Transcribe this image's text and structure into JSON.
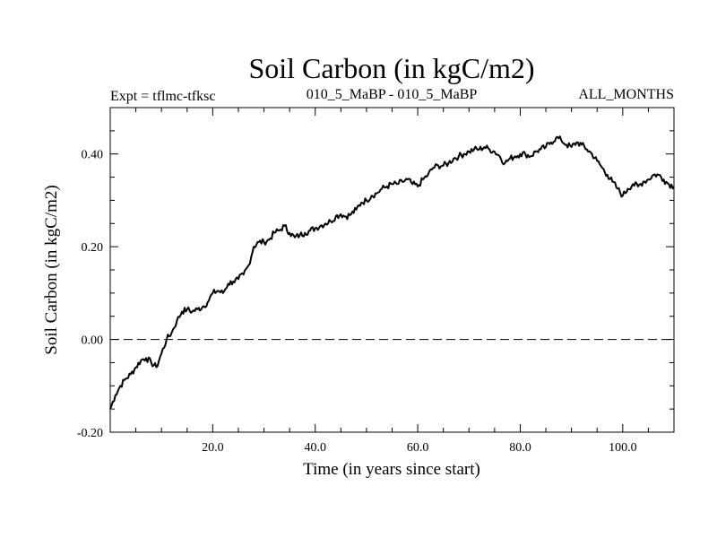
{
  "chart_data": {
    "type": "line",
    "title": "Soil Carbon (in kgC/m2)",
    "subtitle_left": "Expt = tflmc-tfksc",
    "subtitle_center": "010_5_MaBP - 010_5_MaBP",
    "subtitle_right": "ALL_MONTHS",
    "xlabel": "Time (in years since start)",
    "ylabel": "Soil Carbon (in kgC/m2)",
    "xlim": [
      0,
      110
    ],
    "ylim": [
      -0.2,
      0.5
    ],
    "x_ticks": [
      {
        "value": 20,
        "label": "20.0"
      },
      {
        "value": 40,
        "label": "40.0"
      },
      {
        "value": 60,
        "label": "60.0"
      },
      {
        "value": 80,
        "label": "80.0"
      },
      {
        "value": 100,
        "label": "100.0"
      }
    ],
    "y_ticks": [
      {
        "value": -0.2,
        "label": "-0.20"
      },
      {
        "value": 0.0,
        "label": "0.00"
      },
      {
        "value": 0.2,
        "label": "0.20"
      },
      {
        "value": 0.4,
        "label": "0.40"
      }
    ],
    "reference_line": {
      "y": 0.0,
      "style": "dashed"
    },
    "series": [
      {
        "name": "Soil Carbon",
        "x": [
          0,
          1,
          2,
          3,
          4,
          5,
          6,
          7,
          8,
          9,
          10,
          11,
          12,
          13,
          14,
          15,
          16,
          17,
          18,
          19,
          20,
          21,
          22,
          23,
          24,
          25,
          26,
          27,
          28,
          29,
          30,
          31,
          32,
          33,
          34,
          35,
          36,
          37,
          38,
          39,
          40,
          41,
          42,
          43,
          44,
          45,
          46,
          47,
          48,
          49,
          50,
          51,
          52,
          53,
          54,
          55,
          56,
          57,
          58,
          59,
          60,
          61,
          62,
          63,
          64,
          65,
          66,
          67,
          68,
          69,
          70,
          71,
          72,
          73,
          74,
          75,
          76,
          77,
          78,
          79,
          80,
          81,
          82,
          83,
          84,
          85,
          86,
          87,
          88,
          89,
          90,
          91,
          92,
          93,
          94,
          95,
          96,
          97,
          98,
          99,
          100,
          101,
          102,
          103,
          104,
          105,
          106,
          107,
          108,
          109,
          110
        ],
        "y": [
          -0.15,
          -0.12,
          -0.1,
          -0.085,
          -0.075,
          -0.06,
          -0.045,
          -0.04,
          -0.05,
          -0.06,
          -0.03,
          0.0,
          0.015,
          0.04,
          0.06,
          0.065,
          0.06,
          0.065,
          0.07,
          0.08,
          0.1,
          0.105,
          0.1,
          0.12,
          0.125,
          0.13,
          0.14,
          0.16,
          0.2,
          0.21,
          0.21,
          0.215,
          0.23,
          0.235,
          0.245,
          0.23,
          0.22,
          0.225,
          0.23,
          0.235,
          0.24,
          0.245,
          0.25,
          0.255,
          0.265,
          0.27,
          0.265,
          0.27,
          0.28,
          0.295,
          0.3,
          0.31,
          0.315,
          0.325,
          0.33,
          0.335,
          0.335,
          0.34,
          0.345,
          0.335,
          0.33,
          0.345,
          0.355,
          0.37,
          0.375,
          0.375,
          0.38,
          0.39,
          0.395,
          0.4,
          0.405,
          0.41,
          0.41,
          0.415,
          0.41,
          0.405,
          0.395,
          0.38,
          0.39,
          0.395,
          0.4,
          0.4,
          0.395,
          0.405,
          0.41,
          0.415,
          0.425,
          0.435,
          0.43,
          0.42,
          0.415,
          0.425,
          0.42,
          0.41,
          0.4,
          0.385,
          0.37,
          0.355,
          0.34,
          0.325,
          0.31,
          0.325,
          0.335,
          0.33,
          0.34,
          0.345,
          0.355,
          0.355,
          0.345,
          0.335,
          0.33
        ]
      }
    ]
  }
}
